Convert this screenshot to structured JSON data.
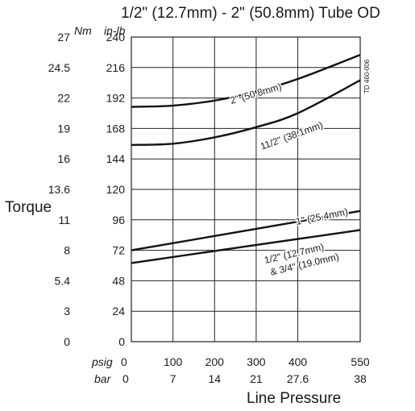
{
  "chart_data": {
    "type": "line",
    "title": "1/2\" (12.7mm) - 2\" (50.8mm) Tube OD",
    "ylabel": "Torque",
    "xlabel": "Line Pressure",
    "y_units": {
      "nm": "Nm",
      "inlb": "in-lb"
    },
    "x_units": {
      "psig": "psig",
      "bar": "bar"
    },
    "y_ticks_inlb": [
      "0",
      "24",
      "48",
      "72",
      "96",
      "120",
      "144",
      "168",
      "192",
      "216",
      "240"
    ],
    "y_ticks_nm": [
      "0",
      "3",
      "5.4",
      "8",
      "11",
      "13.6",
      "16",
      "19",
      "22",
      "24.5",
      "27"
    ],
    "x_ticks_psig": [
      "0",
      "100",
      "200",
      "300",
      "400",
      "550"
    ],
    "x_ticks_bar": [
      "0",
      "7",
      "14",
      "21",
      "27.6",
      "38"
    ],
    "xlim": [
      0,
      550
    ],
    "ylim": [
      0,
      240
    ],
    "grid": true,
    "doc_id": "TD 460-006",
    "series": [
      {
        "name": "2\" (50.8mm)",
        "x": [
          0,
          100,
          200,
          300,
          400,
          550
        ],
        "y": [
          185,
          186,
          190,
          197,
          207,
          226
        ]
      },
      {
        "name": "11/2\" (38.1mm)",
        "x": [
          0,
          100,
          200,
          300,
          400,
          550
        ],
        "y": [
          155,
          156,
          161,
          169,
          180,
          206
        ]
      },
      {
        "name": "1\" (25.4mm)",
        "x": [
          0,
          550
        ],
        "y": [
          72,
          103
        ]
      },
      {
        "name": "1/2\" (12.7mm)\n& 3/4\" (19.0mm)",
        "x": [
          0,
          550
        ],
        "y": [
          62,
          88
        ]
      }
    ],
    "series_label_lines": [
      [
        "2\" (50.8mm)"
      ],
      [
        "11/2\" (38.1mm)"
      ],
      [
        "1\" (25.4mm)"
      ],
      [
        "1/2\" (12.7mm)",
        "& 3/4\" (19.0mm)"
      ]
    ]
  }
}
